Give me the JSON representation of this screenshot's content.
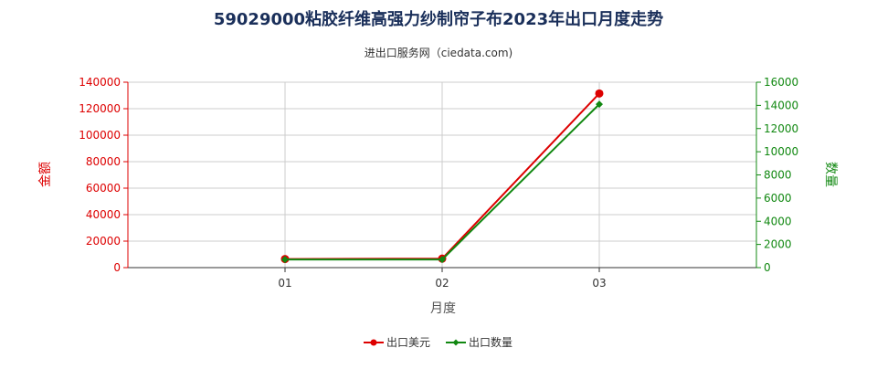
{
  "title": "59029000粘胶纤维高强力纱制帘子布2023年出口月度走势",
  "subtitle": "进出口服务网（ciedata.com)",
  "colors": {
    "left_axis": "#dd0000",
    "right_axis": "#118811",
    "series_usd": "#dd0000",
    "series_qty": "#118811",
    "grid": "#cccccc",
    "title": "#1a2f5a"
  },
  "chart_data": {
    "type": "line",
    "categories": [
      "01",
      "02",
      "03"
    ],
    "xlabel": "月度",
    "ylabel_left": "金额",
    "ylabel_right": "数量",
    "ylim_left": [
      0,
      140000
    ],
    "ylim_right": [
      0,
      16000
    ],
    "yticks_left": [
      "0",
      "20000",
      "40000",
      "60000",
      "80000",
      "100000",
      "120000",
      "140000"
    ],
    "yticks_right": [
      "0",
      "2000",
      "4000",
      "6000",
      "8000",
      "10000",
      "12000",
      "14000",
      "16000"
    ],
    "grid": true,
    "legend_position": "bottom-center",
    "series": [
      {
        "name": "出口美元",
        "axis": "left",
        "marker": "circle",
        "values": [
          6500,
          6800,
          131500
        ]
      },
      {
        "name": "出口数量",
        "axis": "right",
        "marker": "diamond",
        "values": [
          700,
          700,
          14100
        ]
      }
    ]
  }
}
